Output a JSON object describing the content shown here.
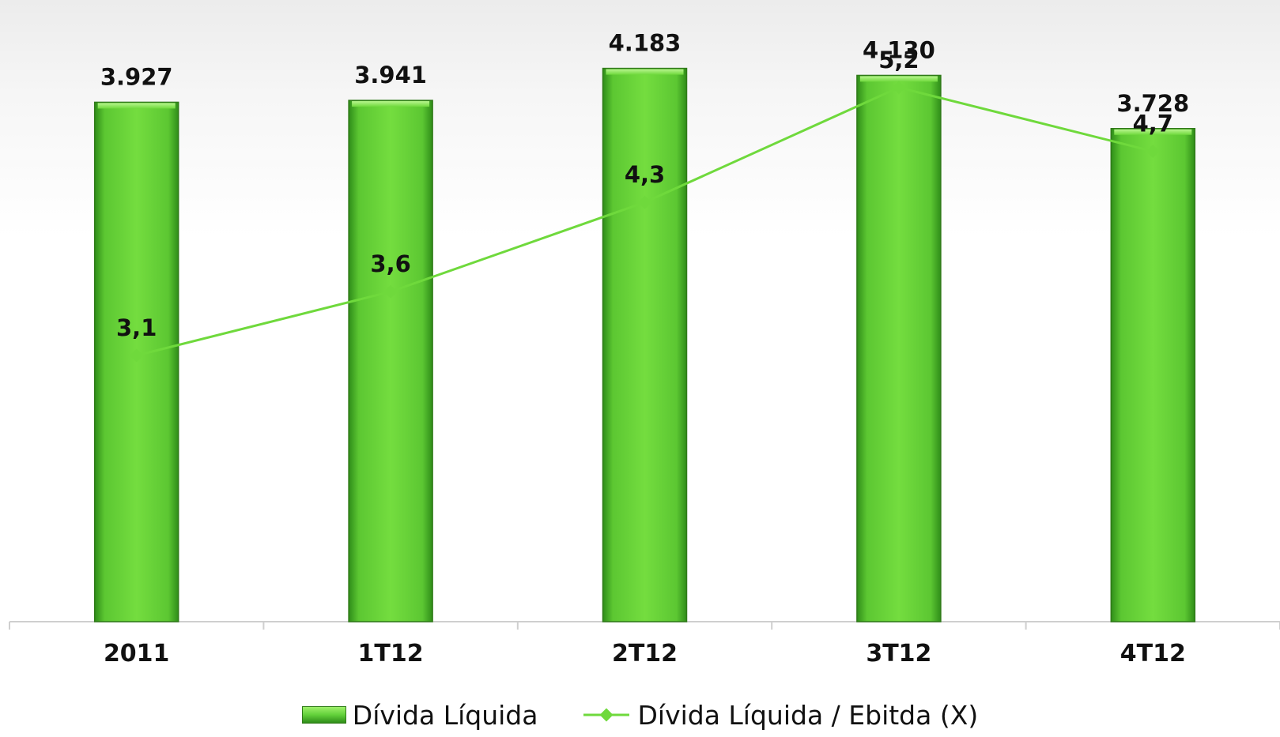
{
  "chart_data": {
    "type": "bar",
    "categories": [
      "2011",
      "1T12",
      "2T12",
      "3T12",
      "4T12"
    ],
    "series": [
      {
        "name": "Dívida Líquida",
        "type": "bar",
        "values": [
          3927,
          3941,
          4183,
          4130,
          3728
        ],
        "labels": [
          "3.927",
          "3.941",
          "4.183",
          "4.130",
          "3.728"
        ]
      },
      {
        "name": "Dívida Líquida / Ebitda (X)",
        "type": "line",
        "values": [
          3.1,
          3.6,
          4.3,
          5.2,
          4.7
        ],
        "labels": [
          "3,1",
          "3,6",
          "4,3",
          "5,2",
          "4,7"
        ]
      }
    ],
    "title": "",
    "xlabel": "",
    "ylabel": "",
    "ylim_bar": [
      0,
      4700
    ],
    "ylim_line": [
      0.5,
      5.7
    ],
    "grid": false,
    "legend_position": "bottom",
    "colors": {
      "bar": "#6fd93c",
      "bar_dark": "#2f8d19",
      "line": "#6fd93c",
      "axis": "#cfcfcf",
      "text": "#111111"
    }
  },
  "legend": {
    "bar_label": "Dívida Líquida",
    "line_label": "Dívida Líquida / Ebitda (X)"
  }
}
